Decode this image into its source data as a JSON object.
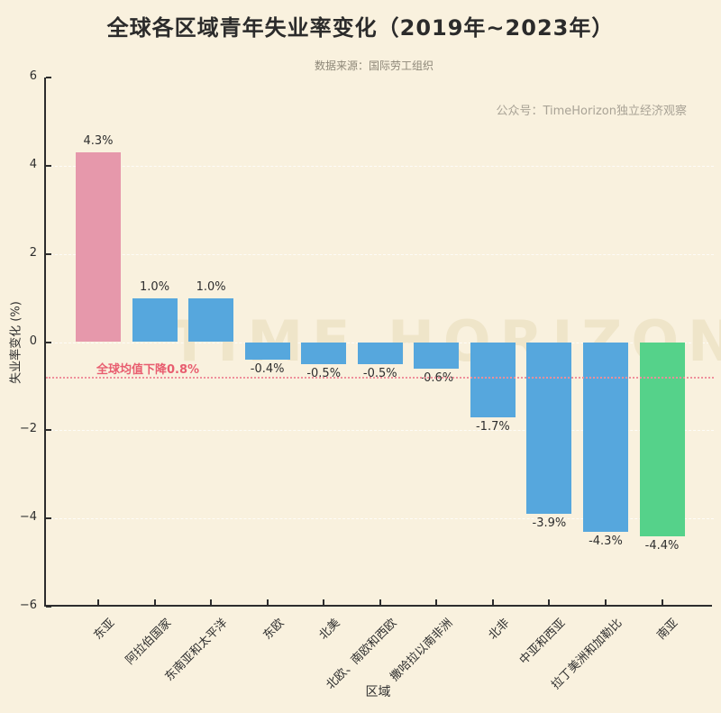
{
  "title": "全球各区域青年失业率变化（2019年~2023年）",
  "subtitle": "数据来源：国际劳工组织",
  "watermark_right": "公众号：TimeHorizon独立经济观察",
  "watermark_center": "TIME HORIZON",
  "chart_data": {
    "type": "bar",
    "title": "全球各区域青年失业率变化（2019年~2023年）",
    "xlabel": "区域",
    "ylabel": "失业率变化 (%)",
    "ylim": [
      -6,
      6
    ],
    "ytick_values": [
      6,
      4,
      2,
      0,
      -2,
      -4,
      -6
    ],
    "ytick_labels": [
      "6",
      "4",
      "2",
      "0",
      "−2",
      "−4",
      "−6"
    ],
    "grid": "horizontal-dashed",
    "legend": "none",
    "categories": [
      "东亚",
      "阿拉伯国家",
      "东南亚和太平洋",
      "东欧",
      "北美",
      "北欧、南欧和西欧",
      "撒哈拉以南非洲",
      "北非",
      "中亚和西亚",
      "拉丁美洲和加勒比",
      "南亚"
    ],
    "values": [
      4.3,
      1.0,
      1.0,
      -0.4,
      -0.5,
      -0.5,
      -0.6,
      -1.7,
      -3.9,
      -4.3,
      -4.4
    ],
    "value_labels": [
      "4.3%",
      "1.0%",
      "1.0%",
      "-0.4%",
      "-0.5%",
      "-0.5%",
      "-0.6%",
      "-1.7%",
      "-3.9%",
      "-4.3%",
      "-4.4%"
    ],
    "bar_colors": [
      "#e698ab",
      "#56a7dd",
      "#56a7dd",
      "#56a7dd",
      "#56a7dd",
      "#56a7dd",
      "#56a7dd",
      "#56a7dd",
      "#56a7dd",
      "#56a7dd",
      "#55d28a"
    ],
    "reference_line": {
      "value": -0.8,
      "label": "全球均值下降0.8%",
      "line_color": "#ef8f9b",
      "label_color": "#e85d6f"
    },
    "colors": {
      "background": "#f9f1de",
      "bar_default": "#56a7dd",
      "bar_max": "#e698ab",
      "bar_min": "#55d28a",
      "axis": "#2d2d2d",
      "text": "#2e2e2e",
      "muted_text": "#8d8778",
      "watermark": "#a9a396",
      "big_watermark": "#efe5c9"
    }
  }
}
